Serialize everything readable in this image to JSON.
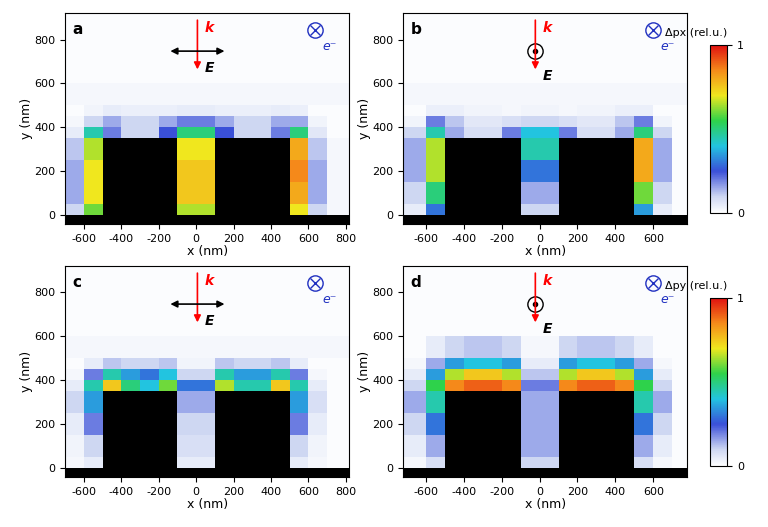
{
  "chart_data": [
    {
      "type": "heatmap",
      "title": "a",
      "annotations": [
        "k",
        "E",
        "e⁻"
      ],
      "x_label": "x (nm)",
      "y_label": "y (nm)",
      "xlim": [
        -700,
        820
      ],
      "ylim": [
        -40,
        920
      ],
      "xticks": [
        -600,
        -400,
        -200,
        0,
        200,
        400,
        600,
        800
      ],
      "yticks": [
        0,
        200,
        400,
        600,
        800
      ],
      "x_edges": [
        -700,
        -600,
        -500,
        -400,
        -300,
        -200,
        -100,
        0,
        100,
        200,
        300,
        400,
        500,
        600,
        700,
        820
      ],
      "y_edges": [
        -40,
        0,
        50,
        150,
        250,
        350,
        400,
        450,
        500,
        600,
        700,
        920
      ],
      "color_range": [
        0,
        1
      ],
      "cells": [
        [
          null,
          null,
          null,
          null,
          null,
          null,
          null,
          null,
          null,
          null,
          null,
          null,
          null,
          null,
          null
        ],
        [
          0.1,
          0.6,
          null,
          null,
          null,
          null,
          0.65,
          0.65,
          null,
          null,
          null,
          null,
          0.7,
          0.1,
          0.02
        ],
        [
          0.15,
          0.7,
          null,
          null,
          null,
          null,
          0.75,
          0.75,
          null,
          null,
          null,
          null,
          0.8,
          0.15,
          0.02
        ],
        [
          0.15,
          0.7,
          null,
          null,
          null,
          null,
          0.75,
          0.75,
          null,
          null,
          null,
          null,
          0.85,
          0.15,
          0.02
        ],
        [
          0.12,
          0.65,
          null,
          null,
          null,
          null,
          0.7,
          0.7,
          null,
          null,
          null,
          null,
          0.8,
          0.12,
          0.02
        ],
        [
          0.05,
          0.45,
          0.2,
          0.1,
          0.1,
          0.25,
          0.5,
          0.5,
          0.25,
          0.1,
          0.1,
          0.2,
          0.5,
          0.06,
          0.01
        ],
        [
          0.02,
          0.1,
          0.15,
          0.1,
          0.1,
          0.15,
          0.2,
          0.2,
          0.15,
          0.1,
          0.1,
          0.15,
          0.15,
          0.03,
          0.01
        ],
        [
          0.01,
          0.03,
          0.05,
          0.04,
          0.04,
          0.04,
          0.05,
          0.05,
          0.04,
          0.04,
          0.04,
          0.05,
          0.04,
          0.01,
          0.01
        ],
        [
          0.02,
          0.02,
          0.02,
          0.02,
          0.02,
          0.02,
          0.02,
          0.02,
          0.02,
          0.02,
          0.02,
          0.02,
          0.02,
          0.02,
          0.02
        ],
        [
          0.01,
          0.01,
          0.01,
          0.01,
          0.01,
          0.01,
          0.01,
          0.01,
          0.01,
          0.01,
          0.01,
          0.01,
          0.01,
          0.01,
          0.01
        ],
        [
          0.01,
          0.01,
          0.01,
          0.01,
          0.01,
          0.01,
          0.01,
          0.01,
          0.01,
          0.01,
          0.01,
          0.01,
          0.01,
          0.01,
          0.01
        ]
      ]
    },
    {
      "type": "heatmap",
      "title": "b",
      "annotations": [
        "k",
        "E",
        "e⁻"
      ],
      "x_label": "x (nm)",
      "y_label": "y (nm)",
      "xlim": [
        -720,
        780
      ],
      "ylim": [
        -40,
        920
      ],
      "xticks": [
        -600,
        -400,
        -200,
        0,
        200,
        400,
        600
      ],
      "yticks": [
        0,
        200,
        400,
        600,
        800
      ],
      "x_edges": [
        -720,
        -600,
        -500,
        -400,
        -300,
        -200,
        -100,
        0,
        100,
        200,
        300,
        400,
        500,
        600,
        700,
        780
      ],
      "y_edges": [
        -40,
        0,
        50,
        150,
        250,
        350,
        400,
        450,
        500,
        600,
        700,
        920
      ],
      "color_range": [
        0,
        1
      ],
      "colorbar_label": "Δpx (rel.u.)",
      "colorbar_ticks": [
        0,
        1
      ],
      "cells": [
        [
          null,
          null,
          null,
          null,
          null,
          null,
          null,
          null,
          null,
          null,
          null,
          null,
          null,
          null,
          null
        ],
        [
          0.05,
          0.3,
          null,
          null,
          null,
          null,
          0.1,
          0.1,
          null,
          null,
          null,
          null,
          0.35,
          0.05,
          0.01
        ],
        [
          0.1,
          0.5,
          null,
          null,
          null,
          null,
          0.15,
          0.15,
          null,
          null,
          null,
          null,
          0.6,
          0.1,
          0.01
        ],
        [
          0.15,
          0.65,
          null,
          null,
          null,
          null,
          0.3,
          0.3,
          null,
          null,
          null,
          null,
          0.8,
          0.15,
          0.01
        ],
        [
          0.15,
          0.65,
          null,
          null,
          null,
          null,
          0.45,
          0.45,
          null,
          null,
          null,
          null,
          0.8,
          0.15,
          0.01
        ],
        [
          0.1,
          0.45,
          0.15,
          0.08,
          0.08,
          0.2,
          0.4,
          0.4,
          0.2,
          0.08,
          0.08,
          0.15,
          0.5,
          0.1,
          0.01
        ],
        [
          0.03,
          0.2,
          0.12,
          0.06,
          0.06,
          0.08,
          0.1,
          0.1,
          0.08,
          0.06,
          0.06,
          0.12,
          0.2,
          0.03,
          0.01
        ],
        [
          0.01,
          0.04,
          0.04,
          0.03,
          0.03,
          0.02,
          0.03,
          0.03,
          0.02,
          0.03,
          0.03,
          0.04,
          0.04,
          0.01,
          0.01
        ],
        [
          0.02,
          0.02,
          0.02,
          0.02,
          0.02,
          0.02,
          0.02,
          0.02,
          0.02,
          0.02,
          0.02,
          0.02,
          0.02,
          0.02,
          0.02
        ],
        [
          0.01,
          0.01,
          0.01,
          0.01,
          0.01,
          0.01,
          0.01,
          0.01,
          0.01,
          0.01,
          0.01,
          0.01,
          0.01,
          0.01,
          0.01
        ],
        [
          0.01,
          0.01,
          0.01,
          0.01,
          0.01,
          0.01,
          0.01,
          0.01,
          0.01,
          0.01,
          0.01,
          0.01,
          0.01,
          0.01,
          0.01
        ]
      ]
    },
    {
      "type": "heatmap",
      "title": "c",
      "annotations": [
        "k",
        "E",
        "e⁻"
      ],
      "x_label": "x (nm)",
      "y_label": "y (nm)",
      "xlim": [
        -700,
        820
      ],
      "ylim": [
        -40,
        920
      ],
      "xticks": [
        -600,
        -400,
        -200,
        0,
        200,
        400,
        600,
        800
      ],
      "yticks": [
        0,
        200,
        400,
        600,
        800
      ],
      "x_edges": [
        -700,
        -600,
        -500,
        -400,
        -300,
        -200,
        -100,
        0,
        100,
        200,
        300,
        400,
        500,
        600,
        700,
        820
      ],
      "y_edges": [
        -40,
        0,
        50,
        150,
        250,
        350,
        400,
        450,
        500,
        600,
        700,
        920
      ],
      "color_range": [
        0,
        1
      ],
      "cells": [
        [
          null,
          null,
          null,
          null,
          null,
          null,
          null,
          null,
          null,
          null,
          null,
          null,
          null,
          null,
          null
        ],
        [
          0.02,
          0.05,
          null,
          null,
          null,
          null,
          0.05,
          0.05,
          null,
          null,
          null,
          null,
          0.05,
          0.02,
          0.01
        ],
        [
          0.03,
          0.1,
          null,
          null,
          null,
          null,
          0.08,
          0.08,
          null,
          null,
          null,
          null,
          0.1,
          0.03,
          0.01
        ],
        [
          0.05,
          0.2,
          null,
          null,
          null,
          null,
          0.1,
          0.1,
          null,
          null,
          null,
          null,
          0.2,
          0.05,
          0.01
        ],
        [
          0.1,
          0.35,
          null,
          null,
          null,
          null,
          0.15,
          0.15,
          null,
          null,
          null,
          null,
          0.35,
          0.08,
          0.01
        ],
        [
          0.05,
          0.45,
          0.75,
          0.5,
          0.4,
          0.6,
          0.3,
          0.3,
          0.65,
          0.45,
          0.45,
          0.75,
          0.45,
          0.05,
          0.01
        ],
        [
          0.02,
          0.2,
          0.45,
          0.35,
          0.3,
          0.4,
          0.1,
          0.1,
          0.45,
          0.35,
          0.35,
          0.45,
          0.2,
          0.02,
          0.01
        ],
        [
          0.01,
          0.05,
          0.12,
          0.1,
          0.1,
          0.12,
          0.03,
          0.03,
          0.12,
          0.1,
          0.1,
          0.12,
          0.05,
          0.01,
          0.01
        ],
        [
          0.02,
          0.02,
          0.02,
          0.02,
          0.02,
          0.02,
          0.02,
          0.02,
          0.02,
          0.02,
          0.02,
          0.02,
          0.02,
          0.02,
          0.02
        ],
        [
          0.01,
          0.01,
          0.01,
          0.01,
          0.01,
          0.01,
          0.01,
          0.01,
          0.01,
          0.01,
          0.01,
          0.01,
          0.01,
          0.01,
          0.01
        ],
        [
          0.01,
          0.01,
          0.01,
          0.01,
          0.01,
          0.01,
          0.01,
          0.01,
          0.01,
          0.01,
          0.01,
          0.01,
          0.01,
          0.01,
          0.01
        ]
      ]
    },
    {
      "type": "heatmap",
      "title": "d",
      "annotations": [
        "k",
        "E",
        "e⁻"
      ],
      "x_label": "x (nm)",
      "y_label": "y (nm)",
      "xlim": [
        -720,
        780
      ],
      "ylim": [
        -40,
        920
      ],
      "xticks": [
        -600,
        -400,
        -200,
        0,
        200,
        400,
        600
      ],
      "yticks": [
        0,
        200,
        400,
        600,
        800
      ],
      "x_edges": [
        -720,
        -600,
        -500,
        -400,
        -300,
        -200,
        -100,
        0,
        100,
        200,
        300,
        400,
        500,
        600,
        700,
        780
      ],
      "y_edges": [
        -40,
        0,
        50,
        150,
        250,
        350,
        400,
        450,
        500,
        600,
        700,
        920
      ],
      "color_range": [
        0,
        1
      ],
      "colorbar_label": "Δpy (rel.u.)",
      "colorbar_ticks": [
        0,
        1
      ],
      "cells": [
        [
          null,
          null,
          null,
          null,
          null,
          null,
          null,
          null,
          null,
          null,
          null,
          null,
          null,
          null,
          null
        ],
        [
          0.02,
          0.08,
          null,
          null,
          null,
          null,
          0.1,
          0.1,
          null,
          null,
          null,
          null,
          0.08,
          0.02,
          0.01
        ],
        [
          0.05,
          0.15,
          null,
          null,
          null,
          null,
          0.15,
          0.15,
          null,
          null,
          null,
          null,
          0.15,
          0.05,
          0.01
        ],
        [
          0.1,
          0.3,
          null,
          null,
          null,
          null,
          0.15,
          0.15,
          null,
          null,
          null,
          null,
          0.3,
          0.1,
          0.01
        ],
        [
          0.15,
          0.45,
          null,
          null,
          null,
          null,
          0.15,
          0.15,
          null,
          null,
          null,
          null,
          0.45,
          0.15,
          0.01
        ],
        [
          0.1,
          0.55,
          0.85,
          0.9,
          0.9,
          0.85,
          0.2,
          0.2,
          0.85,
          0.9,
          0.9,
          0.85,
          0.55,
          0.1,
          0.01
        ],
        [
          0.05,
          0.35,
          0.65,
          0.75,
          0.75,
          0.65,
          0.12,
          0.12,
          0.65,
          0.75,
          0.75,
          0.65,
          0.35,
          0.05,
          0.01
        ],
        [
          0.02,
          0.15,
          0.35,
          0.4,
          0.4,
          0.35,
          0.05,
          0.05,
          0.35,
          0.4,
          0.4,
          0.35,
          0.15,
          0.02,
          0.01
        ],
        [
          0.01,
          0.05,
          0.1,
          0.12,
          0.12,
          0.1,
          0.02,
          0.02,
          0.1,
          0.12,
          0.12,
          0.1,
          0.05,
          0.01,
          0.01
        ],
        [
          0.01,
          0.01,
          0.01,
          0.01,
          0.01,
          0.01,
          0.01,
          0.01,
          0.01,
          0.01,
          0.01,
          0.01,
          0.01,
          0.01,
          0.01
        ],
        [
          0.01,
          0.01,
          0.01,
          0.01,
          0.01,
          0.01,
          0.01,
          0.01,
          0.01,
          0.01,
          0.01,
          0.01,
          0.01,
          0.01,
          0.01
        ]
      ]
    }
  ]
}
